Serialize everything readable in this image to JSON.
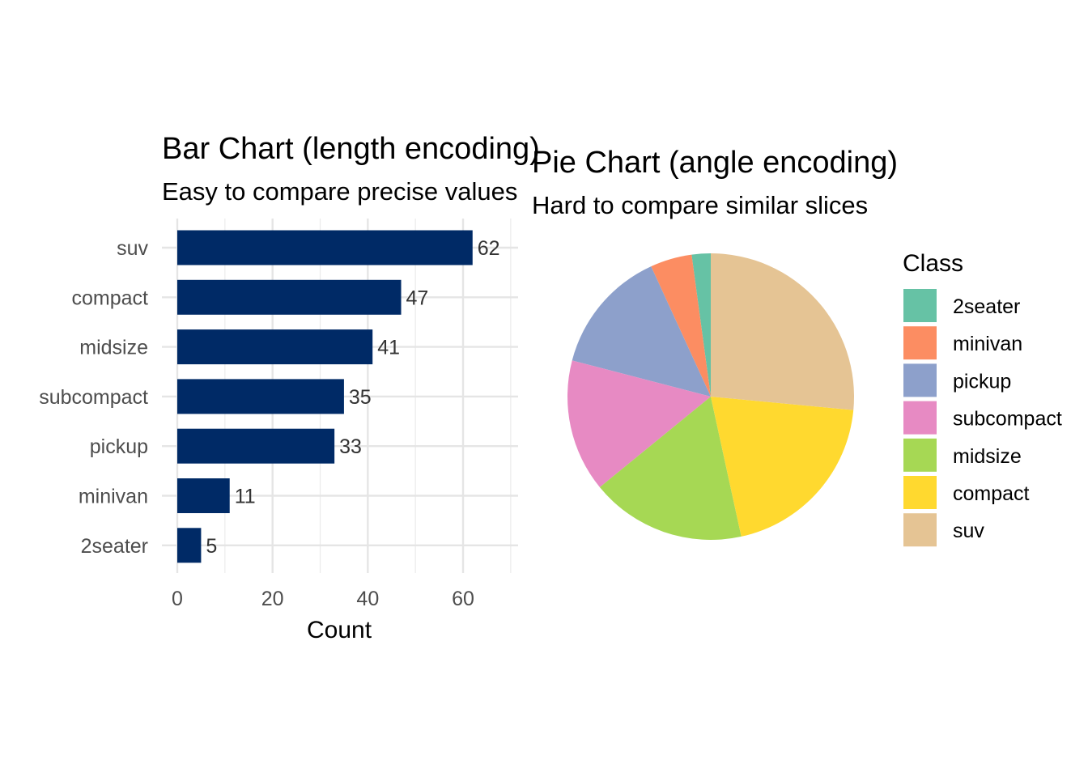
{
  "chart_data": [
    {
      "type": "bar",
      "orientation": "horizontal",
      "title": "Bar Chart (length encoding)",
      "subtitle": "Easy to compare precise values",
      "xlabel": "Count",
      "ylabel": "",
      "categories": [
        "suv",
        "compact",
        "midsize",
        "subcompact",
        "pickup",
        "minivan",
        "2seater"
      ],
      "values": [
        62,
        47,
        41,
        35,
        33,
        11,
        5
      ],
      "xlim": [
        0,
        70
      ],
      "xticks": [
        0,
        20,
        40,
        60
      ],
      "grid": true,
      "bar_color": "#002A66"
    },
    {
      "type": "pie",
      "title": "Pie Chart (angle encoding)",
      "subtitle": "Hard to compare similar slices",
      "legend_title": "Class",
      "legend_position": "right",
      "slices": [
        {
          "label": "2seater",
          "value": 5,
          "color": "#66C2A5"
        },
        {
          "label": "minivan",
          "value": 11,
          "color": "#FC8D62"
        },
        {
          "label": "pickup",
          "value": 33,
          "color": "#8DA0CB"
        },
        {
          "label": "subcompact",
          "value": 35,
          "color": "#E78AC3"
        },
        {
          "label": "midsize",
          "value": 41,
          "color": "#A6D854"
        },
        {
          "label": "compact",
          "value": 47,
          "color": "#FFD92F"
        },
        {
          "label": "suv",
          "value": 62,
          "color": "#E5C494"
        }
      ]
    }
  ]
}
